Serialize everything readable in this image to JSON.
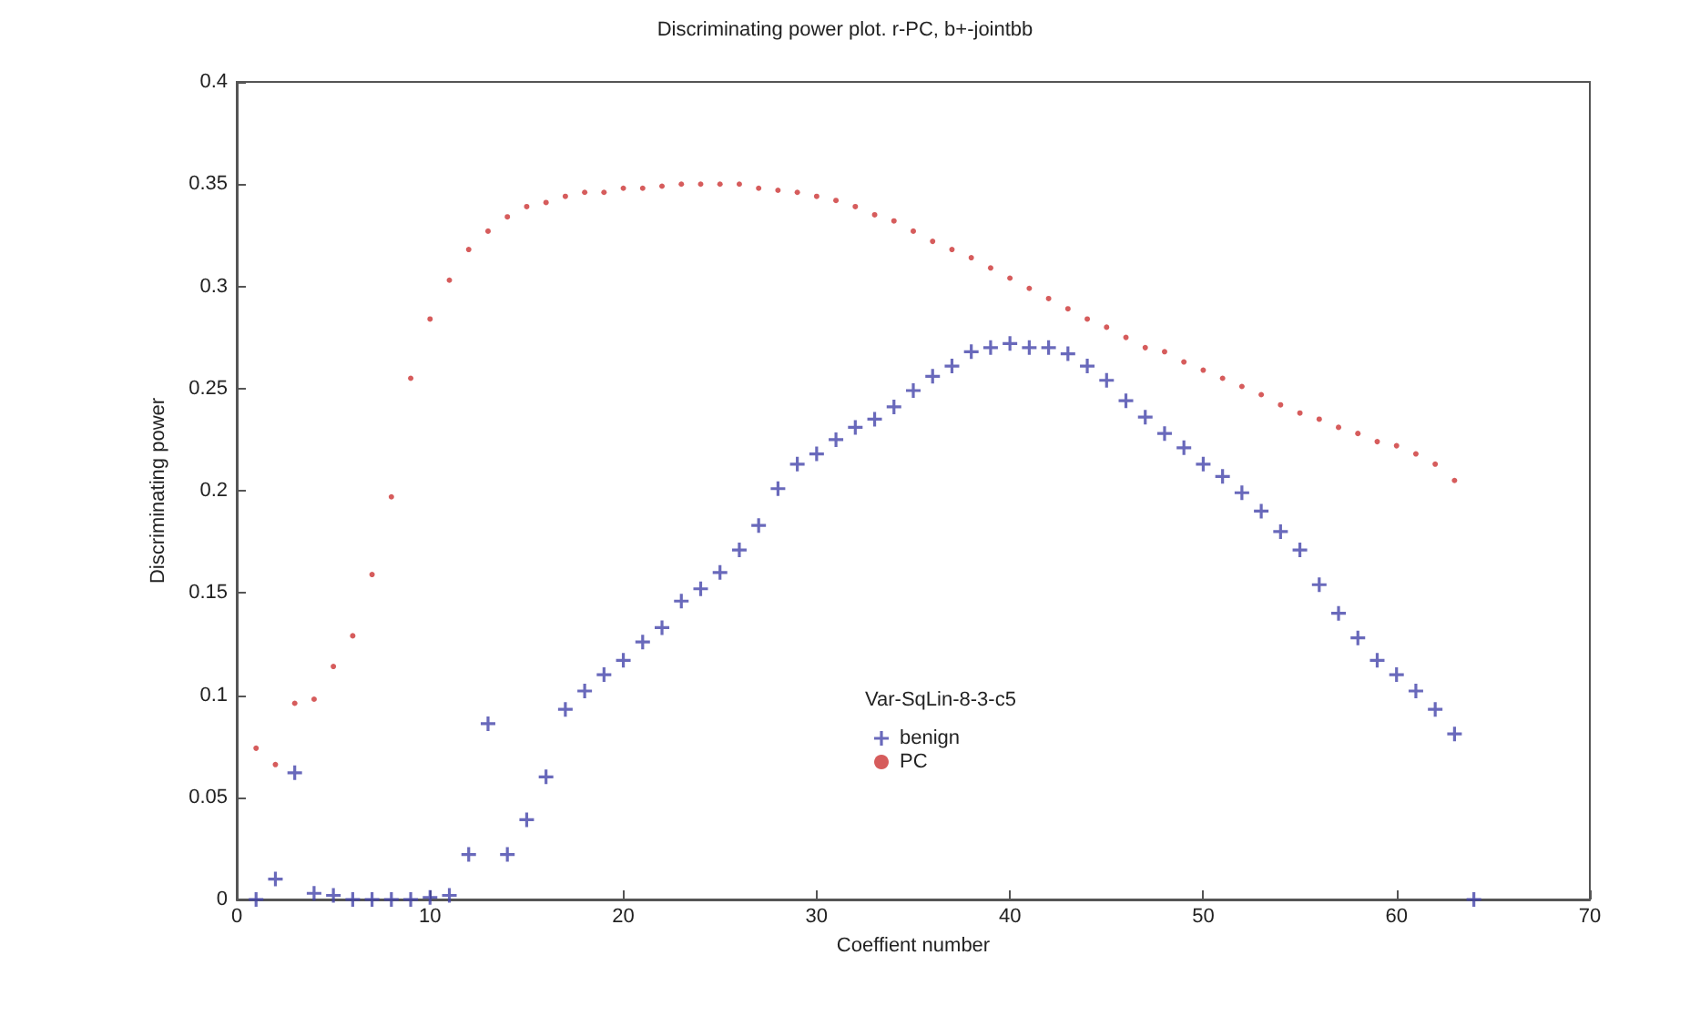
{
  "chart_data": {
    "type": "scatter",
    "title": "Discriminating power plot. r-PC, b+-jointbb",
    "xlabel": "Coeffient number",
    "ylabel": "Discriminating power",
    "legend_title": "Var-SqLin-8-3-c5",
    "legend": "bottom",
    "xlim": [
      0,
      70
    ],
    "xticks": [
      0,
      10,
      20,
      30,
      40,
      50,
      60,
      70
    ],
    "ylim": [
      0,
      0.4
    ],
    "yticks": [
      0,
      0.05,
      0.1,
      0.15,
      0.2,
      0.25,
      0.3,
      0.35,
      0.4
    ],
    "grid": false,
    "series": [
      {
        "name": "benign",
        "color": "#4444aa",
        "marker": "cross",
        "x": [
          1,
          2,
          3,
          4,
          5,
          6,
          7,
          8,
          9,
          10,
          11,
          12,
          13,
          14,
          15,
          16,
          17,
          18,
          19,
          20,
          21,
          22,
          23,
          24,
          25,
          26,
          27,
          28,
          29,
          30,
          31,
          32,
          33,
          34,
          35,
          36,
          37,
          38,
          39,
          40,
          41,
          42,
          43,
          44,
          45,
          46,
          47,
          48,
          49,
          50,
          51,
          52,
          53,
          54,
          55,
          56,
          57,
          58,
          59,
          60,
          61,
          62,
          63,
          64
        ],
        "values": [
          0,
          0.01,
          0.062,
          0.003,
          0.002,
          0,
          0,
          0,
          0,
          0.001,
          0.002,
          0.022,
          0.086,
          0.022,
          0.039,
          0.06,
          0.093,
          0.102,
          0.11,
          0.117,
          0.126,
          0.133,
          0.146,
          0.152,
          0.16,
          0.171,
          0.183,
          0.201,
          0.213,
          0.218,
          0.225,
          0.231,
          0.235,
          0.241,
          0.249,
          0.256,
          0.261,
          0.268,
          0.27,
          0.272,
          0.27,
          0.27,
          0.267,
          0.261,
          0.254,
          0.244,
          0.236,
          0.228,
          0.221,
          0.213,
          0.207,
          0.199,
          0.19,
          0.18,
          0.171,
          0.154,
          0.14,
          0.128,
          0.117,
          0.11,
          0.102,
          0.093,
          0.081,
          0
        ]
      },
      {
        "name": "PC",
        "color": "#cc3333",
        "marker": "circle",
        "x": [
          1,
          2,
          3,
          4,
          5,
          6,
          7,
          8,
          9,
          10,
          11,
          12,
          13,
          14,
          15,
          16,
          17,
          18,
          19,
          20,
          21,
          22,
          23,
          24,
          25,
          26,
          27,
          28,
          29,
          30,
          31,
          32,
          33,
          34,
          35,
          36,
          37,
          38,
          39,
          40,
          41,
          42,
          43,
          44,
          45,
          46,
          47,
          48,
          49,
          50,
          51,
          52,
          53,
          54,
          55,
          56,
          57,
          58,
          59,
          60,
          61,
          62,
          63
        ],
        "values": [
          0.074,
          0.066,
          0.096,
          0.098,
          0.114,
          0.129,
          0.159,
          0.197,
          0.255,
          0.284,
          0.303,
          0.318,
          0.327,
          0.334,
          0.339,
          0.341,
          0.344,
          0.346,
          0.346,
          0.348,
          0.348,
          0.349,
          0.35,
          0.35,
          0.35,
          0.35,
          0.348,
          0.347,
          0.346,
          0.344,
          0.342,
          0.339,
          0.335,
          0.332,
          0.327,
          0.322,
          0.318,
          0.314,
          0.309,
          0.304,
          0.299,
          0.294,
          0.289,
          0.284,
          0.28,
          0.275,
          0.27,
          0.268,
          0.263,
          0.259,
          0.255,
          0.251,
          0.247,
          0.242,
          0.238,
          0.235,
          0.231,
          0.228,
          0.224,
          0.222,
          0.218,
          0.213,
          0.205
        ]
      }
    ]
  }
}
